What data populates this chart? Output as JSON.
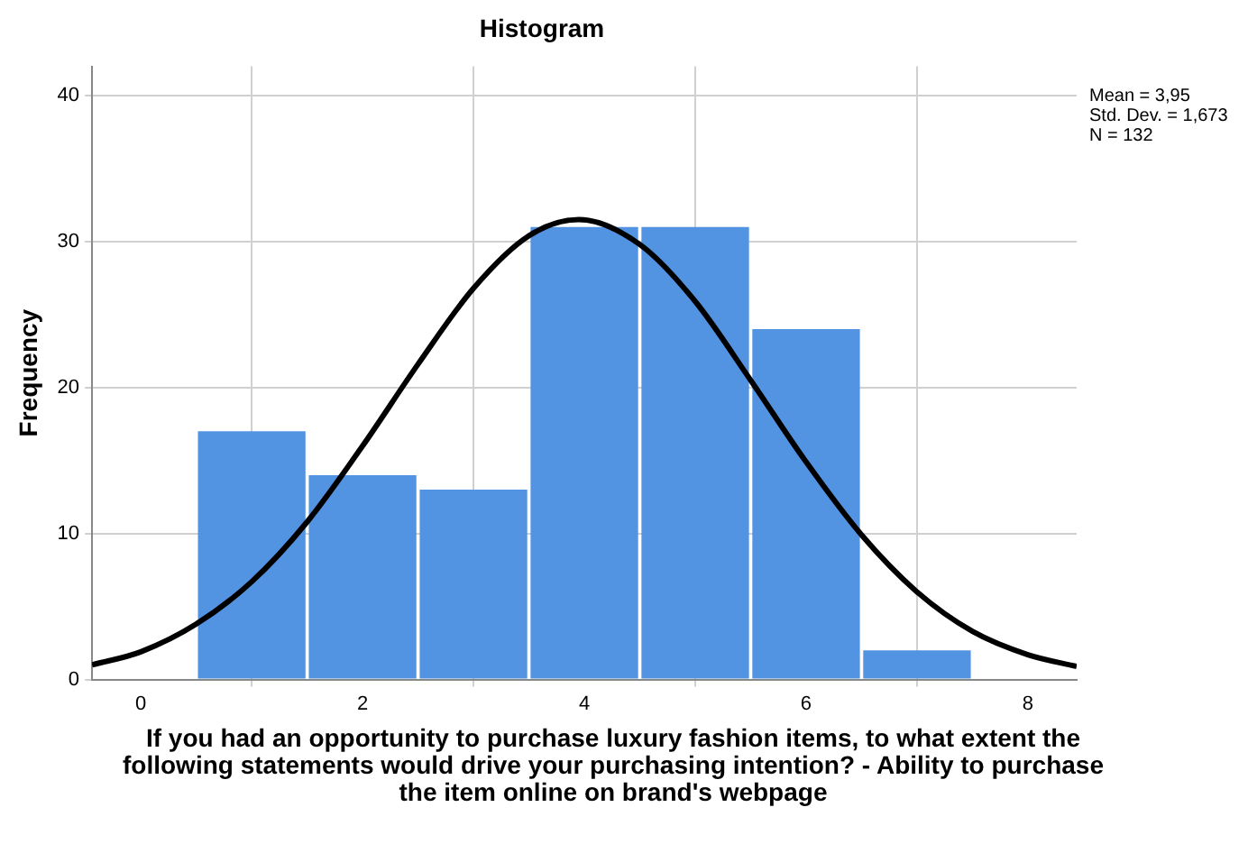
{
  "chart_data": {
    "type": "histogram",
    "title": "Histogram",
    "ylabel": "Frequency",
    "xlabel": "If you had an opportunity to purchase luxury fashion items, to what extent the following statements would drive your purchasing intention? - Ability to purchase the item online on brand's webpage",
    "bins": [
      0.5,
      1.5,
      2.5,
      3.5,
      4.5,
      5.5,
      6.5,
      7.5
    ],
    "values": [
      17,
      14,
      13,
      31,
      31,
      24,
      2
    ],
    "color": "#5294e2",
    "series": [
      {
        "type": "line",
        "color": "#000000",
        "x": [
          -0.44,
          0,
          0.5,
          1,
          1.5,
          2,
          2.5,
          3,
          3.5,
          3.95,
          4.5,
          5,
          5.5,
          6,
          6.5,
          7,
          7.5,
          8,
          8.44
        ],
        "values": [
          1.0,
          1.9,
          3.8,
          6.7,
          10.8,
          16.0,
          21.6,
          26.8,
          30.4,
          31.5,
          29.8,
          25.9,
          20.5,
          14.9,
          9.9,
          6.0,
          3.3,
          1.7,
          0.9
        ]
      }
    ],
    "xlim": [
      -0.44,
      8.44
    ],
    "ylim": [
      0,
      42
    ],
    "xticks": [
      0,
      2,
      4,
      6,
      8
    ],
    "yticks": [
      0,
      10,
      20,
      30,
      40
    ],
    "grid": true,
    "annotations": [
      "Mean = 3,95",
      "Std. Dev. = 1,673",
      "N = 132"
    ]
  }
}
